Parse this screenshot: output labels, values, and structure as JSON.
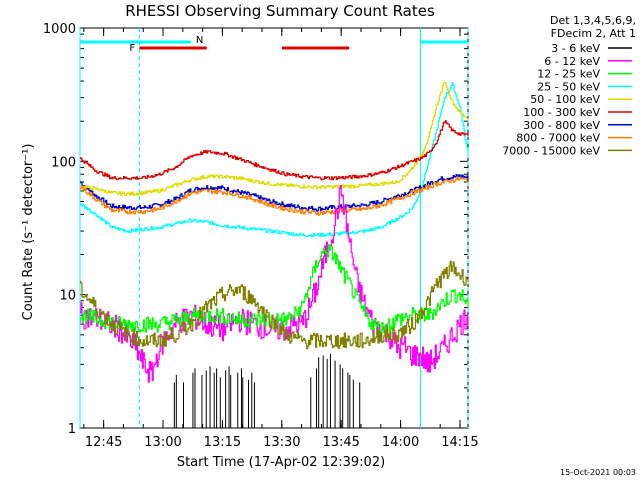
{
  "chart_data": {
    "type": "line",
    "title": "RHESSI Observing Summary Count Rates",
    "xlabel": "Start Time (17-Apr-02 12:39:02)",
    "ylabel": "Count Rate (s⁻¹ detector⁻¹)",
    "yscale": "log",
    "ylim": [
      1,
      1000
    ],
    "xlim_minutes_after_start": [
      0,
      98
    ],
    "x_ticks": [
      "12:45",
      "13:00",
      "13:15",
      "13:30",
      "13:45",
      "14:00",
      "14:15"
    ],
    "y_ticks": [
      "1",
      "10",
      "100",
      "1000"
    ],
    "legend_header": [
      "Det 1,3,4,5,6,9,",
      "FDecim 2, Att 1"
    ],
    "legend_position": "right",
    "footer_date": "15-Oct-2021 00:03",
    "flag_labels": {
      "flare": "F",
      "night": "N"
    },
    "x_unit": "minutes after 12:39:02",
    "series": [
      {
        "name": "3 - 6 keV",
        "color": "#000000",
        "kind": "spikes",
        "x": [
          23,
          24,
          26,
          28,
          29,
          30,
          31,
          32,
          33,
          34,
          35,
          36,
          37,
          38,
          39,
          40,
          41,
          42,
          43,
          44,
          58,
          59,
          60,
          61,
          62,
          63,
          64,
          65,
          66,
          67,
          68,
          69,
          70
        ],
        "values": [
          2.2,
          2.5,
          2.2,
          2.6,
          2.8,
          2.5,
          2.7,
          2.9,
          2.6,
          2.8,
          2.4,
          2.7,
          2.9,
          2.5,
          2.6,
          2.8,
          2.4,
          2.3,
          2.6,
          2.2,
          2.4,
          2.8,
          3.4,
          3.5,
          3.3,
          3.6,
          3.2,
          3.0,
          2.8,
          2.6,
          2.5,
          2.3,
          2.2
        ]
      },
      {
        "name": "6 - 12 keV",
        "color": "#ff00ff",
        "x": [
          0,
          5,
          10,
          14,
          16,
          18,
          20,
          24,
          28,
          32,
          36,
          40,
          44,
          48,
          52,
          54,
          56,
          58,
          60,
          62,
          64,
          66,
          68,
          70,
          72,
          74,
          76,
          78,
          80,
          82,
          84,
          86,
          88,
          90,
          92,
          94,
          96,
          98
        ],
        "values": [
          7,
          6.5,
          5.5,
          4,
          3,
          2.5,
          4,
          6,
          7,
          6,
          5.5,
          6.5,
          6,
          5.5,
          5.5,
          6,
          6,
          8,
          12,
          20,
          32,
          60,
          25,
          12,
          8,
          6,
          5.5,
          5,
          4,
          4,
          3.5,
          3.5,
          3,
          3.5,
          4,
          5,
          6,
          7
        ]
      },
      {
        "name": "12 - 25 keV",
        "color": "#00ff00",
        "x": [
          0,
          5,
          10,
          15,
          20,
          25,
          30,
          35,
          40,
          45,
          50,
          52,
          54,
          56,
          58,
          60,
          62,
          64,
          66,
          68,
          70,
          72,
          74,
          76,
          78,
          80,
          84,
          88,
          92,
          94,
          96,
          98
        ],
        "values": [
          7,
          6.5,
          6,
          6,
          6,
          6.5,
          7,
          7,
          6.5,
          6.5,
          6.5,
          6.5,
          7,
          8,
          12,
          18,
          22,
          20,
          15,
          12,
          9,
          7,
          6,
          5.5,
          6,
          6.5,
          7,
          7,
          9,
          10,
          10,
          8.5
        ]
      },
      {
        "name": "25 - 50 keV",
        "color": "#00ffff",
        "x": [
          0,
          4,
          8,
          12,
          16,
          20,
          24,
          28,
          32,
          36,
          40,
          44,
          48,
          52,
          56,
          60,
          64,
          68,
          72,
          76,
          80,
          82,
          84,
          86,
          88,
          90,
          92,
          94,
          96,
          98
        ],
        "values": [
          48,
          40,
          32,
          30,
          31,
          32,
          34,
          36,
          35,
          33,
          32,
          31,
          30,
          29,
          28,
          28,
          28.5,
          29,
          30,
          32,
          37,
          40,
          45,
          60,
          100,
          170,
          300,
          380,
          250,
          110
        ]
      },
      {
        "name": "50 - 100 keV",
        "color": "#dddd00",
        "x": [
          0,
          4,
          8,
          12,
          16,
          20,
          24,
          28,
          32,
          36,
          40,
          44,
          48,
          52,
          56,
          60,
          64,
          68,
          72,
          76,
          80,
          82,
          84,
          86,
          88,
          90,
          92,
          94,
          96,
          98
        ],
        "values": [
          65,
          62,
          58,
          57,
          58,
          60,
          66,
          73,
          77,
          77,
          75,
          71,
          68,
          66,
          65,
          64,
          64.5,
          65,
          66,
          68,
          70,
          78,
          90,
          110,
          150,
          260,
          400,
          280,
          230,
          210
        ]
      },
      {
        "name": "100 - 300 keV",
        "color": "#dd0000",
        "x": [
          0,
          4,
          8,
          12,
          16,
          20,
          24,
          28,
          32,
          36,
          40,
          44,
          48,
          52,
          56,
          60,
          64,
          68,
          72,
          76,
          80,
          82,
          84,
          86,
          88,
          90,
          92,
          94,
          96,
          98
        ],
        "values": [
          105,
          85,
          75,
          75,
          75,
          80,
          90,
          110,
          118,
          115,
          105,
          95,
          87,
          80,
          77,
          75,
          75,
          76,
          78,
          82,
          90,
          95,
          100,
          105,
          115,
          140,
          200,
          170,
          160,
          158
        ]
      },
      {
        "name": "300 - 800 keV",
        "color": "#0000cc",
        "x": [
          0,
          4,
          8,
          12,
          16,
          20,
          24,
          28,
          32,
          36,
          40,
          44,
          48,
          52,
          56,
          60,
          64,
          68,
          72,
          76,
          80,
          84,
          88,
          90,
          92,
          94,
          96,
          98
        ],
        "values": [
          70,
          55,
          46,
          45,
          45,
          47,
          52,
          61,
          64,
          63,
          59,
          55,
          50,
          47,
          45,
          44,
          45,
          46,
          47,
          50,
          55,
          60,
          68,
          72,
          75,
          76,
          78,
          75
        ]
      },
      {
        "name": "800 - 7000 keV",
        "color": "#ff8000",
        "x": [
          0,
          4,
          8,
          12,
          16,
          20,
          24,
          28,
          32,
          36,
          40,
          44,
          48,
          52,
          56,
          60,
          64,
          68,
          72,
          76,
          80,
          84,
          88,
          90,
          92,
          94,
          96,
          98
        ],
        "values": [
          65,
          52,
          43,
          42,
          42,
          44,
          50,
          58,
          60,
          59,
          56,
          52,
          47,
          44,
          42,
          41,
          42,
          43,
          44,
          47,
          52,
          58,
          64,
          68,
          70,
          72,
          74,
          72
        ]
      },
      {
        "name": "7000 - 15000 keV",
        "color": "#808000",
        "x": [
          0,
          4,
          8,
          12,
          16,
          20,
          24,
          28,
          32,
          36,
          40,
          44,
          48,
          52,
          56,
          60,
          64,
          68,
          72,
          76,
          78,
          80,
          84,
          88,
          90,
          92,
          94,
          96,
          98
        ],
        "values": [
          11,
          8,
          6,
          5,
          4.5,
          4.5,
          5,
          6,
          8,
          10,
          11,
          9,
          6.5,
          5,
          4.5,
          4.5,
          4.5,
          4.5,
          4.5,
          5,
          5,
          5,
          6,
          9,
          12,
          14,
          16,
          14,
          13
        ]
      }
    ],
    "attenuator_bar": [
      {
        "x_start": 0,
        "x_end": 28,
        "color": "#00ffff",
        "label": "N"
      },
      {
        "x_start": 86,
        "x_end": 98,
        "color": "#00ffff"
      }
    ],
    "flare_bars": [
      {
        "x_start": 15,
        "x_end": 32,
        "color": "#dd0000",
        "label": "F"
      },
      {
        "x_start": 51,
        "x_end": 68,
        "color": "#dd0000"
      }
    ],
    "night_lines": [
      0,
      15,
      86,
      98
    ]
  }
}
